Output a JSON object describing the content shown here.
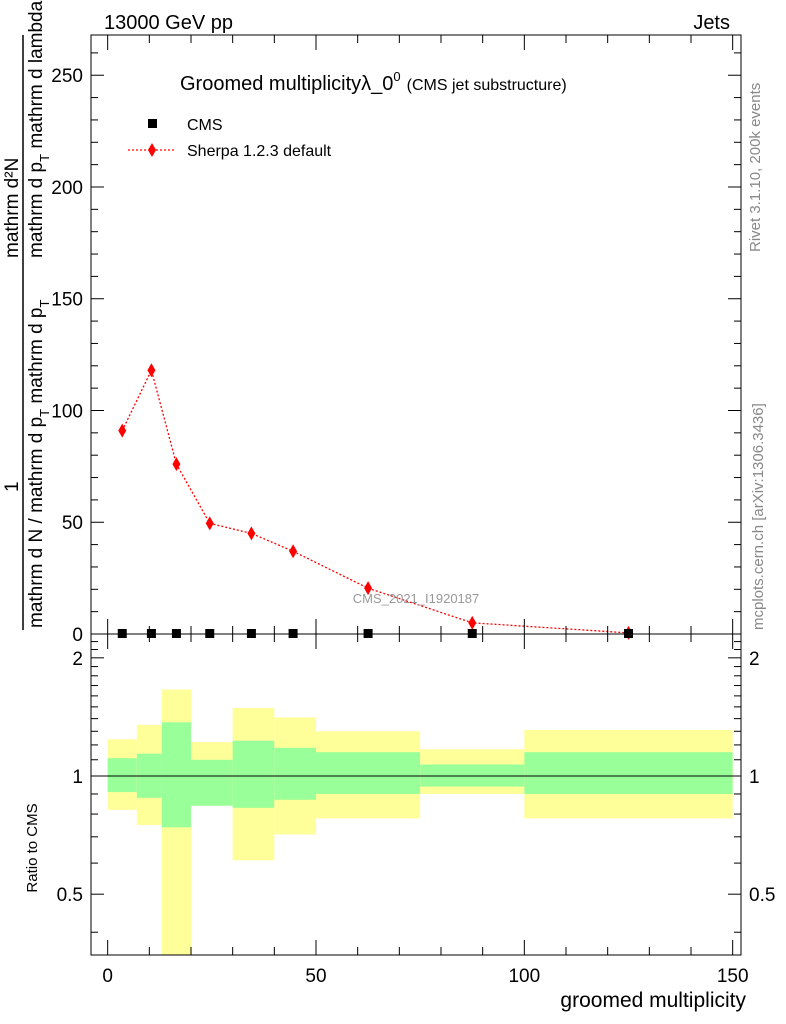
{
  "header": {
    "left": "13000 GeV pp",
    "right": "Jets"
  },
  "side_texts": {
    "rivet": "Rivet 3.1.10,  200k events",
    "mcplots": "mcplots.cern.ch [arXiv:1306.3436]"
  },
  "chart_data": [
    {
      "type": "scatter",
      "title": "Groomed multiplicityλ_0",
      "title_sup": "0",
      "subtitle": "(CMS jet substructure)",
      "watermark": "CMS_2021_I1920187",
      "xlabel": "groomed multiplicity",
      "ylabel_parts": {
        "num": "mathrm d²N",
        "den_a": "mathrm d p",
        "den_sub": "T",
        "den_b": " mathrm d lambda",
        "lead": "1",
        "frac_a": "mathrm d N / mathrm d p",
        "frac_sub": "T",
        "frac_b": " mathrm d p",
        "frac_sub2": "T"
      },
      "xlim": [
        -4,
        152
      ],
      "ylim": [
        0,
        268
      ],
      "yticks": [
        0,
        50,
        100,
        150,
        200,
        250
      ],
      "legend": {
        "position": "top-left",
        "items": [
          {
            "label": "CMS",
            "marker": "square",
            "color": "#000000"
          },
          {
            "label": "Sherpa 1.2.3 default",
            "marker": "diamond",
            "color": "#ff0000",
            "line": "dotted"
          }
        ]
      },
      "series": [
        {
          "name": "CMS",
          "x": [
            3.5,
            10.5,
            16.5,
            24.5,
            34.5,
            44.5,
            62.5,
            87.5,
            125
          ],
          "y": [
            0,
            0,
            0,
            0,
            0,
            0,
            0,
            0,
            0
          ],
          "color": "#000000"
        },
        {
          "name": "Sherpa 1.2.3 default",
          "x": [
            3.5,
            10.5,
            16.5,
            24.5,
            34.5,
            44.5,
            62.5,
            87.5,
            125
          ],
          "y": [
            91,
            118,
            76,
            49.5,
            45,
            37,
            20.5,
            5,
            0.5
          ],
          "err": [
            2,
            2.5,
            2,
            1.2,
            1.2,
            1,
            0.8,
            0.3,
            0.1
          ],
          "color": "#ff0000"
        }
      ]
    },
    {
      "type": "area",
      "ylabel": "Ratio to CMS",
      "xlim": [
        -4,
        152
      ],
      "ylim": [
        0.35,
        2.3
      ],
      "yticks": [
        0.5,
        1,
        2
      ],
      "ytick_labels": [
        "0.5",
        "1",
        "2"
      ],
      "xticks": [
        0,
        50,
        100,
        150
      ],
      "xtick_labels": [
        "0",
        "50",
        "100",
        "150"
      ],
      "reference_line": 1,
      "bands": [
        {
          "x0": 0,
          "x1": 7,
          "inner": [
            0.91,
            1.11
          ],
          "outer": [
            0.82,
            1.24
          ]
        },
        {
          "x0": 7,
          "x1": 13,
          "inner": [
            0.88,
            1.14
          ],
          "outer": [
            0.75,
            1.35
          ]
        },
        {
          "x0": 13,
          "x1": 20,
          "inner": [
            0.74,
            1.37
          ],
          "outer": [
            0.34,
            1.66
          ]
        },
        {
          "x0": 20,
          "x1": 30,
          "inner": [
            0.84,
            1.1
          ],
          "outer": [
            0.84,
            1.22
          ]
        },
        {
          "x0": 30,
          "x1": 40,
          "inner": [
            0.83,
            1.23
          ],
          "outer": [
            0.61,
            1.49
          ]
        },
        {
          "x0": 40,
          "x1": 50,
          "inner": [
            0.87,
            1.18
          ],
          "outer": [
            0.71,
            1.41
          ]
        },
        {
          "x0": 50,
          "x1": 75,
          "inner": [
            0.9,
            1.15
          ],
          "outer": [
            0.78,
            1.3
          ]
        },
        {
          "x0": 75,
          "x1": 100,
          "inner": [
            0.94,
            1.07
          ],
          "outer": [
            0.9,
            1.17
          ]
        },
        {
          "x0": 100,
          "x1": 150,
          "inner": [
            0.9,
            1.15
          ],
          "outer": [
            0.78,
            1.31
          ]
        }
      ],
      "colors": {
        "inner": "#99ff99",
        "outer": "#ffff99"
      }
    }
  ]
}
